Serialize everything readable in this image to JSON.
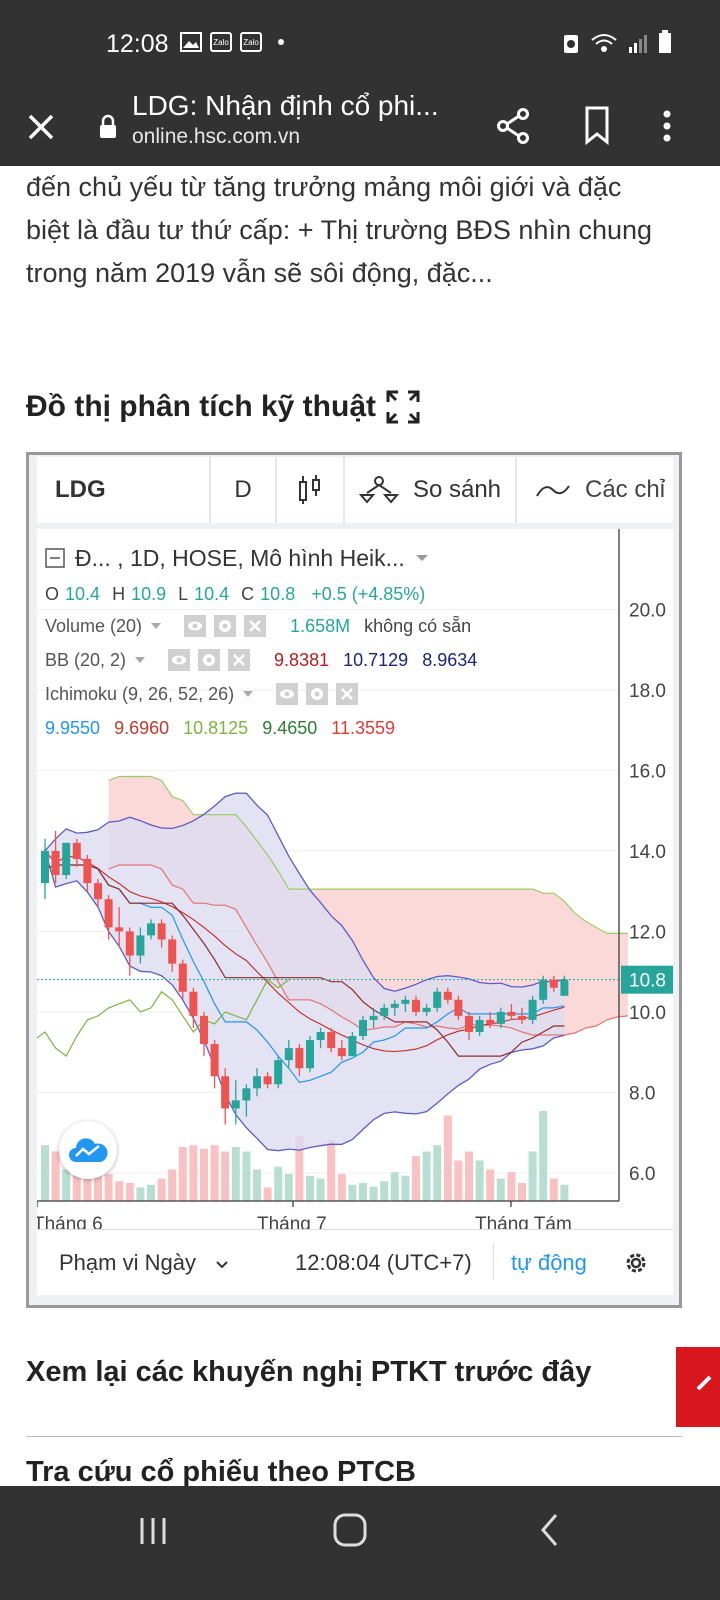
{
  "status_bar": {
    "time": "12:08",
    "notification_icons": [
      "image-icon",
      "zalo-icon",
      "zalo-icon"
    ],
    "zalo_label": "Zalo",
    "right_icons": [
      "recycle-icon",
      "wifi-icon",
      "signal-icon",
      "battery-icon"
    ]
  },
  "browser": {
    "title": "LDG: Nhận định cổ phi...",
    "host": "online.hsc.com.vn"
  },
  "article": {
    "text": "đến chủ yếu từ tăng trưởng mảng môi giới và đặc biệt là đầu tư thứ cấp: + Thị trường BĐS nhìn chung trong năm 2019 vẫn sẽ sôi động, đặc..."
  },
  "section_title": "Đồ thị phân tích kỹ thuật",
  "toolbar": {
    "symbol": "LDG",
    "interval": "D",
    "compare": "So sánh",
    "indicators": "Các chỉ"
  },
  "legend": {
    "title": "Đ...  , 1D, HOSE, Mô hình Heik...",
    "ohlc": {
      "o_label": "O",
      "o": "10.4",
      "h_label": "H",
      "h": "10.9",
      "l_label": "L",
      "l": "10.4",
      "c_label": "C",
      "c": "10.8",
      "change": "+0.5 (+4.85%)"
    },
    "volume": {
      "label": "Volume (20)",
      "value": "1.658M",
      "na": "không có sẵn"
    },
    "bb": {
      "label": "BB (20, 2)",
      "v1": "9.8381",
      "v2": "10.7129",
      "v3": "8.9634"
    },
    "ichimoku": {
      "label": "Ichimoku (9, 26, 52, 26)",
      "v1": "9.9550",
      "v2": "9.6960",
      "v3": "10.8125",
      "v4": "9.4650",
      "v5": "11.3559"
    }
  },
  "colors": {
    "up": "#26a69a",
    "down": "#ef5350",
    "bb_mid": "#b71c1c",
    "bb_upper": "#1a237e",
    "ichimoku_1": "#2196f3",
    "ichimoku_2": "#c0392b",
    "ichimoku_3": "#8bc34a",
    "ichimoku_4": "#388e3c",
    "ichimoku_5": "#e53935",
    "price_tag": "#26a69a"
  },
  "chart_data": {
    "type": "candlestick",
    "y_ticks": [
      "20.0",
      "18.0",
      "16.0",
      "14.0",
      "12.0",
      "10.0",
      "8.0",
      "6.0"
    ],
    "ylim": [
      5.3,
      22
    ],
    "x_labels": [
      "Tháng 6",
      "Tháng 7",
      "Tháng Tám"
    ],
    "last_price_label": "10.8",
    "candles": [
      {
        "o": 13.2,
        "h": 14.3,
        "l": 12.8,
        "c": 14.0
      },
      {
        "o": 14.0,
        "h": 14.5,
        "l": 13.2,
        "c": 13.4
      },
      {
        "o": 13.4,
        "h": 14.2,
        "l": 13.3,
        "c": 14.2
      },
      {
        "o": 14.2,
        "h": 14.3,
        "l": 13.6,
        "c": 13.8
      },
      {
        "o": 13.8,
        "h": 13.9,
        "l": 13.0,
        "c": 13.2
      },
      {
        "o": 13.2,
        "h": 13.3,
        "l": 12.6,
        "c": 12.8
      },
      {
        "o": 12.8,
        "h": 12.9,
        "l": 11.8,
        "c": 12.1
      },
      {
        "o": 12.1,
        "h": 12.6,
        "l": 11.6,
        "c": 12.0
      },
      {
        "o": 12.0,
        "h": 12.1,
        "l": 10.9,
        "c": 11.4
      },
      {
        "o": 11.4,
        "h": 12.1,
        "l": 11.2,
        "c": 11.9
      },
      {
        "o": 11.9,
        "h": 12.3,
        "l": 11.8,
        "c": 12.2
      },
      {
        "o": 12.2,
        "h": 12.3,
        "l": 11.6,
        "c": 11.8
      },
      {
        "o": 11.8,
        "h": 11.9,
        "l": 11.0,
        "c": 11.2
      },
      {
        "o": 11.2,
        "h": 11.3,
        "l": 10.3,
        "c": 10.5
      },
      {
        "o": 10.5,
        "h": 10.6,
        "l": 9.6,
        "c": 9.9
      },
      {
        "o": 9.9,
        "h": 10.0,
        "l": 8.9,
        "c": 9.2
      },
      {
        "o": 9.2,
        "h": 9.3,
        "l": 8.1,
        "c": 8.4
      },
      {
        "o": 8.4,
        "h": 8.6,
        "l": 7.2,
        "c": 7.6
      },
      {
        "o": 7.6,
        "h": 8.3,
        "l": 7.2,
        "c": 7.8
      },
      {
        "o": 7.8,
        "h": 8.2,
        "l": 7.4,
        "c": 8.1
      },
      {
        "o": 8.1,
        "h": 8.6,
        "l": 7.9,
        "c": 8.4
      },
      {
        "o": 8.4,
        "h": 8.5,
        "l": 8.1,
        "c": 8.2
      },
      {
        "o": 8.2,
        "h": 8.9,
        "l": 8.1,
        "c": 8.8
      },
      {
        "o": 8.8,
        "h": 9.3,
        "l": 8.6,
        "c": 9.1
      },
      {
        "o": 9.1,
        "h": 9.2,
        "l": 8.4,
        "c": 8.6
      },
      {
        "o": 8.6,
        "h": 9.4,
        "l": 8.5,
        "c": 9.3
      },
      {
        "o": 9.3,
        "h": 9.6,
        "l": 9.1,
        "c": 9.5
      },
      {
        "o": 9.5,
        "h": 9.6,
        "l": 9.0,
        "c": 9.1
      },
      {
        "o": 9.1,
        "h": 9.3,
        "l": 8.8,
        "c": 8.9
      },
      {
        "o": 8.9,
        "h": 9.5,
        "l": 8.9,
        "c": 9.4
      },
      {
        "o": 9.4,
        "h": 9.9,
        "l": 9.3,
        "c": 9.8
      },
      {
        "o": 9.8,
        "h": 10.1,
        "l": 9.6,
        "c": 9.9
      },
      {
        "o": 9.9,
        "h": 10.2,
        "l": 9.8,
        "c": 10.1
      },
      {
        "o": 10.1,
        "h": 10.3,
        "l": 9.9,
        "c": 10.2
      },
      {
        "o": 10.2,
        "h": 10.4,
        "l": 10.0,
        "c": 10.3
      },
      {
        "o": 10.3,
        "h": 10.4,
        "l": 9.9,
        "c": 10.0
      },
      {
        "o": 10.0,
        "h": 10.2,
        "l": 9.9,
        "c": 10.1
      },
      {
        "o": 10.1,
        "h": 10.6,
        "l": 10.0,
        "c": 10.5
      },
      {
        "o": 10.5,
        "h": 10.6,
        "l": 10.2,
        "c": 10.3
      },
      {
        "o": 10.3,
        "h": 10.4,
        "l": 9.8,
        "c": 9.9
      },
      {
        "o": 9.9,
        "h": 10.0,
        "l": 9.3,
        "c": 9.5
      },
      {
        "o": 9.5,
        "h": 9.9,
        "l": 9.4,
        "c": 9.8
      },
      {
        "o": 9.8,
        "h": 10.0,
        "l": 9.6,
        "c": 9.7
      },
      {
        "o": 9.7,
        "h": 10.1,
        "l": 9.6,
        "c": 10.0
      },
      {
        "o": 10.0,
        "h": 10.2,
        "l": 9.8,
        "c": 9.9
      },
      {
        "o": 9.9,
        "h": 10.1,
        "l": 9.7,
        "c": 9.8
      },
      {
        "o": 9.8,
        "h": 10.4,
        "l": 9.7,
        "c": 10.3
      },
      {
        "o": 10.3,
        "h": 10.9,
        "l": 10.2,
        "c": 10.8
      },
      {
        "o": 10.8,
        "h": 10.9,
        "l": 10.5,
        "c": 10.6
      },
      {
        "o": 10.4,
        "h": 10.9,
        "l": 10.4,
        "c": 10.8
      }
    ],
    "volume_relative": [
      0.62,
      0.55,
      0.35,
      0.42,
      0.38,
      0.4,
      0.3,
      0.22,
      0.2,
      0.15,
      0.18,
      0.25,
      0.35,
      0.6,
      0.62,
      0.58,
      0.62,
      0.55,
      0.6,
      0.55,
      0.35,
      0.15,
      0.38,
      0.3,
      0.72,
      0.28,
      0.25,
      0.68,
      0.3,
      0.18,
      0.2,
      0.16,
      0.22,
      0.32,
      0.28,
      0.5,
      0.55,
      0.62,
      0.95,
      0.45,
      0.55,
      0.45,
      0.35,
      0.25,
      0.32,
      0.2,
      0.55,
      1.0,
      0.25,
      0.18
    ]
  },
  "footer": {
    "range": "Phạm vi Ngày",
    "time": "12:08:04 (UTC+7)",
    "auto": "tự động"
  },
  "links": {
    "recommendations": "Xem lại các khuyến nghị PTKT trước đây",
    "lookup": "Tra cứu cổ phiếu theo PTCB"
  }
}
